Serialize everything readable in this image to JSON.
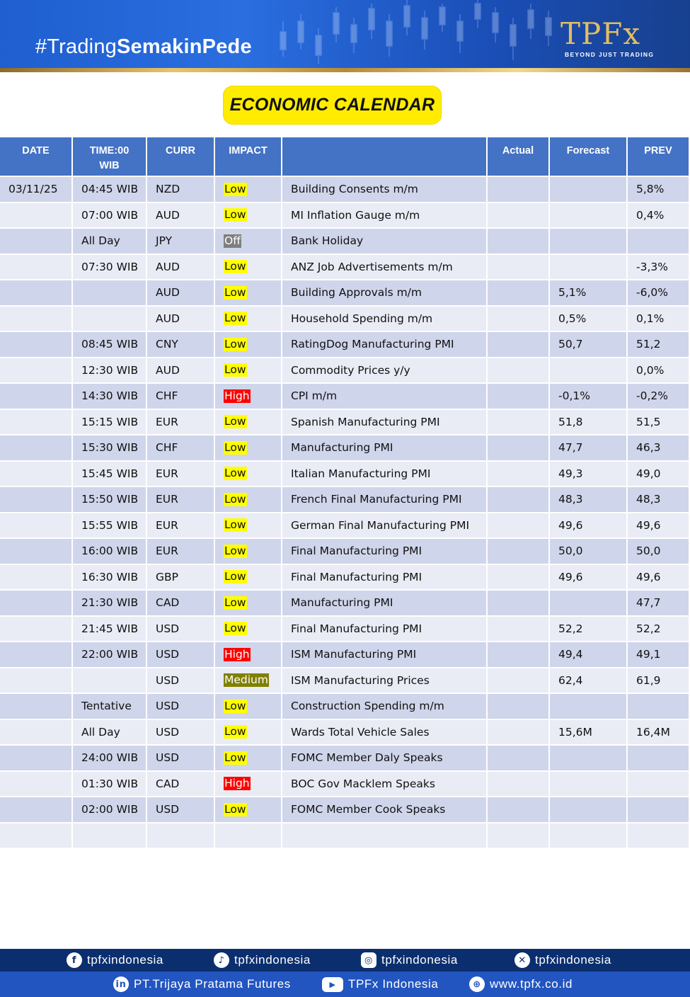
{
  "header": {
    "hashtag_prefix": "#Trading",
    "hashtag_bold": "SemakinPede",
    "logo_main": "TPFx",
    "logo_tagline": "BEYOND JUST TRADING"
  },
  "title": "ECONOMIC CALENDAR",
  "table": {
    "columns": [
      "DATE",
      "TIME:00 WIB",
      "CURR",
      "IMPACT",
      "",
      "Actual",
      "Forecast",
      "PREV"
    ],
    "rows": [
      {
        "date": "03/11/25",
        "time": "04:45 WIB",
        "curr": "NZD",
        "impact": "Low",
        "event": "Building Consents m/m",
        "actual": "",
        "forecast": "",
        "prev": "5,8%"
      },
      {
        "date": "",
        "time": "07:00 WIB",
        "curr": "AUD",
        "impact": "Low",
        "event": "MI Inflation Gauge m/m",
        "actual": "",
        "forecast": "",
        "prev": "0,4%"
      },
      {
        "date": "",
        "time": "All Day",
        "curr": "JPY",
        "impact": "Off",
        "event": "Bank Holiday",
        "actual": "",
        "forecast": "",
        "prev": ""
      },
      {
        "date": "",
        "time": "07:30 WIB",
        "curr": "AUD",
        "impact": "Low",
        "event": "ANZ Job Advertisements m/m",
        "actual": "",
        "forecast": "",
        "prev": "-3,3%"
      },
      {
        "date": "",
        "time": "",
        "curr": "AUD",
        "impact": "Low",
        "event": "Building Approvals m/m",
        "actual": "",
        "forecast": "5,1%",
        "prev": "-6,0%"
      },
      {
        "date": "",
        "time": "",
        "curr": "AUD",
        "impact": "Low",
        "event": "Household Spending m/m",
        "actual": "",
        "forecast": "0,5%",
        "prev": "0,1%"
      },
      {
        "date": "",
        "time": "08:45 WIB",
        "curr": "CNY",
        "impact": "Low",
        "event": "RatingDog Manufacturing PMI",
        "actual": "",
        "forecast": "50,7",
        "prev": "51,2"
      },
      {
        "date": "",
        "time": "12:30 WIB",
        "curr": "AUD",
        "impact": "Low",
        "event": "Commodity Prices y/y",
        "actual": "",
        "forecast": "",
        "prev": "0,0%"
      },
      {
        "date": "",
        "time": "14:30 WIB",
        "curr": "CHF",
        "impact": "High",
        "event": "CPI m/m",
        "actual": "",
        "forecast": "-0,1%",
        "prev": "-0,2%"
      },
      {
        "date": "",
        "time": "15:15 WIB",
        "curr": "EUR",
        "impact": "Low",
        "event": "Spanish Manufacturing PMI",
        "actual": "",
        "forecast": "51,8",
        "prev": "51,5"
      },
      {
        "date": "",
        "time": "15:30 WIB",
        "curr": "CHF",
        "impact": "Low",
        "event": "Manufacturing PMI",
        "actual": "",
        "forecast": "47,7",
        "prev": "46,3"
      },
      {
        "date": "",
        "time": "15:45 WIB",
        "curr": "EUR",
        "impact": "Low",
        "event": "Italian Manufacturing PMI",
        "actual": "",
        "forecast": "49,3",
        "prev": "49,0"
      },
      {
        "date": "",
        "time": "15:50 WIB",
        "curr": "EUR",
        "impact": "Low",
        "event": "French Final Manufacturing PMI",
        "actual": "",
        "forecast": "48,3",
        "prev": "48,3"
      },
      {
        "date": "",
        "time": "15:55 WIB",
        "curr": "EUR",
        "impact": "Low",
        "event": "German Final Manufacturing PMI",
        "actual": "",
        "forecast": "49,6",
        "prev": "49,6"
      },
      {
        "date": "",
        "time": "16:00 WIB",
        "curr": "EUR",
        "impact": "Low",
        "event": "Final Manufacturing PMI",
        "actual": "",
        "forecast": "50,0",
        "prev": "50,0"
      },
      {
        "date": "",
        "time": "16:30 WIB",
        "curr": "GBP",
        "impact": "Low",
        "event": "Final Manufacturing PMI",
        "actual": "",
        "forecast": "49,6",
        "prev": "49,6"
      },
      {
        "date": "",
        "time": "21:30 WIB",
        "curr": "CAD",
        "impact": "Low",
        "event": "Manufacturing PMI",
        "actual": "",
        "forecast": "",
        "prev": "47,7"
      },
      {
        "date": "",
        "time": "21:45 WIB",
        "curr": "USD",
        "impact": "Low",
        "event": "Final Manufacturing PMI",
        "actual": "",
        "forecast": "52,2",
        "prev": "52,2"
      },
      {
        "date": "",
        "time": "22:00 WIB",
        "curr": "USD",
        "impact": "High",
        "event": "ISM Manufacturing PMI",
        "actual": "",
        "forecast": "49,4",
        "prev": "49,1"
      },
      {
        "date": "",
        "time": "",
        "curr": "USD",
        "impact": "Medium",
        "event": "ISM Manufacturing Prices",
        "actual": "",
        "forecast": "62,4",
        "prev": "61,9"
      },
      {
        "date": "",
        "time": "Tentative",
        "curr": "USD",
        "impact": "Low",
        "event": "Construction Spending m/m",
        "actual": "",
        "forecast": "",
        "prev": ""
      },
      {
        "date": "",
        "time": "All Day",
        "curr": "USD",
        "impact": "Low",
        "event": "Wards Total Vehicle Sales",
        "actual": "",
        "forecast": "15,6M",
        "prev": "16,4M"
      },
      {
        "date": "",
        "time": "24:00 WIB",
        "curr": "USD",
        "impact": "Low",
        "event": "FOMC Member Daly Speaks",
        "actual": "",
        "forecast": "",
        "prev": ""
      },
      {
        "date": "",
        "time": "01:30 WIB",
        "curr": "CAD",
        "impact": "High",
        "event": "BOC Gov Macklem Speaks",
        "actual": "",
        "forecast": "",
        "prev": ""
      },
      {
        "date": "",
        "time": "02:00 WIB",
        "curr": "USD",
        "impact": "Low",
        "event": "FOMC Member Cook Speaks",
        "actual": "",
        "forecast": "",
        "prev": ""
      },
      {
        "date": "",
        "time": "",
        "curr": "",
        "impact": "",
        "event": "",
        "actual": "",
        "forecast": "",
        "prev": ""
      }
    ]
  },
  "impact_colors": {
    "Low": "#ffff00",
    "High": "#ff0000",
    "Off": "#7f7f7f",
    "Medium": "#808000"
  },
  "footer": {
    "social": [
      {
        "icon": "facebook-icon",
        "glyph": "f",
        "label": "tpfxindonesia"
      },
      {
        "icon": "tiktok-icon",
        "glyph": "♪",
        "label": "tpfxindonesia"
      },
      {
        "icon": "instagram-icon",
        "glyph": "◎",
        "label": "tpfxindonesia"
      },
      {
        "icon": "x-icon",
        "glyph": "✕",
        "label": "tpfxindonesia"
      }
    ],
    "links": [
      {
        "icon": "linkedin-icon",
        "glyph": "in",
        "label": "PT.Trijaya Pratama Futures"
      },
      {
        "icon": "youtube-icon",
        "glyph": "▶",
        "label": "TPFx Indonesia"
      },
      {
        "icon": "globe-icon",
        "glyph": "⊕",
        "label": "www.tpfx.co.id"
      }
    ]
  }
}
